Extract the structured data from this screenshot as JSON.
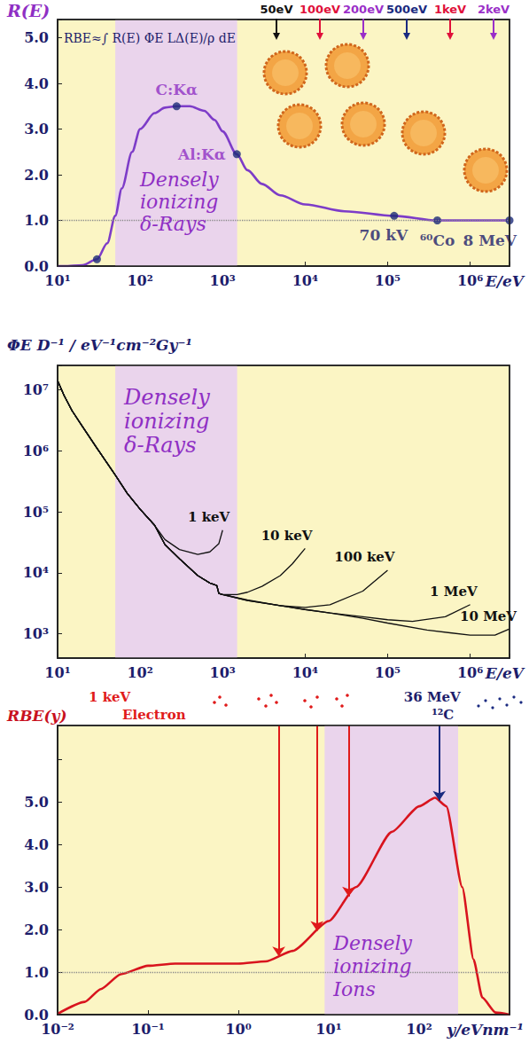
{
  "chart_data": [
    {
      "type": "line",
      "y_label": "R(E)",
      "x_label": "E/eV",
      "formula": "RBE≈∫ R(E) ΦE LΔ(E)/ρ dE",
      "log": "x",
      "grid": false,
      "xlim": [
        10,
        3000000
      ],
      "xticks": [
        {
          "value": 10,
          "label": "10¹"
        },
        {
          "value": 100,
          "label": "10²"
        },
        {
          "value": 1000,
          "label": "10³"
        },
        {
          "value": 10000,
          "label": "10⁴"
        },
        {
          "value": 100000,
          "label": "10⁵"
        },
        {
          "value": 1000000,
          "label": "10⁶"
        }
      ],
      "ylim": [
        0,
        5.4
      ],
      "yticks": [
        {
          "value": 0,
          "label": "0.0"
        },
        {
          "value": 1,
          "label": "1.0"
        },
        {
          "value": 2,
          "label": "2.0"
        },
        {
          "value": 3,
          "label": "3.0"
        },
        {
          "value": 4,
          "label": "4.0"
        },
        {
          "value": 5,
          "label": "5.0"
        }
      ],
      "band": [
        50,
        1500
      ],
      "band_label": "Densely ionizing δ-Rays",
      "reference_line": 1.0,
      "color": "#7d3cc8",
      "line_style": "solid",
      "x": [
        10,
        12,
        20,
        30,
        40,
        50,
        60,
        80,
        100,
        150,
        200,
        277,
        400,
        600,
        800,
        1000,
        1487,
        2000,
        3000,
        5000,
        10000,
        30000,
        120000,
        400000,
        1000000,
        3000000
      ],
      "values": [
        0,
        0,
        0.02,
        0.15,
        0.5,
        1.1,
        1.7,
        2.5,
        3.0,
        3.35,
        3.47,
        3.5,
        3.5,
        3.4,
        3.2,
        2.95,
        2.45,
        2.1,
        1.8,
        1.55,
        1.35,
        1.2,
        1.1,
        1.0,
        1.0,
        1.0
      ],
      "points": {
        "marker": "circle",
        "color": "#1c2a78",
        "x": [
          30,
          277,
          1487,
          120000,
          400000,
          3000000
        ],
        "values": [
          0.15,
          3.5,
          2.45,
          1.1,
          1.0,
          1.0
        ],
        "labels": [
          null,
          "C:Kα",
          "Al:Kα",
          "70 kV",
          "⁶⁰Co",
          "8 MeV"
        ]
      },
      "track_labels": [
        {
          "label": "50eV",
          "color": "#111111"
        },
        {
          "label": "100eV",
          "color": "#e0103a"
        },
        {
          "label": "200eV",
          "color": "#9a2fc8"
        },
        {
          "label": "500eV",
          "color": "#1a2a80"
        },
        {
          "label": "1keV",
          "color": "#e0103a"
        },
        {
          "label": "2keV",
          "color": "#9a2fc8"
        }
      ]
    },
    {
      "type": "line",
      "y_label": "ΦE D⁻¹ / eV⁻¹cm⁻²Gy⁻¹",
      "x_label": "E/eV",
      "log": true,
      "grid": false,
      "xlim": [
        10,
        3000000
      ],
      "xticks": [
        {
          "value": 10,
          "label": "10¹"
        },
        {
          "value": 100,
          "label": "10²"
        },
        {
          "value": 1000,
          "label": "10³"
        },
        {
          "value": 10000,
          "label": "10⁴"
        },
        {
          "value": 100000,
          "label": "10⁵"
        },
        {
          "value": 1000000,
          "label": "10⁶"
        }
      ],
      "ylim": [
        400,
        25000000
      ],
      "yticks": [
        {
          "value": 1000,
          "label": "10³"
        },
        {
          "value": 10000,
          "label": "10⁴"
        },
        {
          "value": 100000,
          "label": "10⁵"
        },
        {
          "value": 1000000,
          "label": "10⁶"
        },
        {
          "value": 10000000,
          "label": "10⁷"
        }
      ],
      "band": [
        50,
        1500
      ],
      "band_label": "Densely ionizing δ-Rays",
      "line_style": "solid",
      "series": [
        {
          "name": "1 keV",
          "color": "#111111",
          "x": [
            10,
            12,
            15,
            20,
            30,
            50,
            70,
            100,
            150,
            200,
            300,
            500,
            700,
            900,
            1000
          ],
          "values": [
            14000000,
            8000000,
            4500000,
            2500000,
            1100000,
            400000,
            200000,
            110000,
            60000,
            35000,
            24000,
            20000,
            22000,
            30000,
            50000
          ]
        },
        {
          "name": "10 keV",
          "color": "#111111",
          "x": [
            10,
            12,
            15,
            20,
            30,
            50,
            70,
            100,
            150,
            200,
            300,
            500,
            700,
            850,
            900,
            1000,
            1500,
            2000,
            3000,
            5000,
            7000,
            10000
          ],
          "values": [
            14000000,
            8000000,
            4500000,
            2500000,
            1100000,
            400000,
            200000,
            110000,
            60000,
            29000,
            17000,
            9000,
            6800,
            6200,
            4600,
            4400,
            4400,
            4800,
            6000,
            9000,
            14000,
            25000
          ]
        },
        {
          "name": "100 keV",
          "color": "#111111",
          "x": [
            10,
            12,
            15,
            20,
            30,
            50,
            70,
            100,
            150,
            200,
            300,
            500,
            700,
            850,
            900,
            1000,
            2000,
            5000,
            10000,
            20000,
            50000,
            100000
          ],
          "values": [
            14000000,
            8000000,
            4500000,
            2500000,
            1100000,
            400000,
            200000,
            110000,
            60000,
            29000,
            17000,
            9000,
            6800,
            6200,
            4600,
            4400,
            3600,
            2900,
            2700,
            3000,
            5000,
            11000
          ]
        },
        {
          "name": "1 MeV",
          "color": "#111111",
          "x": [
            10,
            12,
            15,
            20,
            30,
            50,
            70,
            100,
            150,
            200,
            300,
            500,
            700,
            850,
            900,
            1000,
            2000,
            5000,
            10000,
            20000,
            50000,
            100000,
            200000,
            500000,
            1000000
          ],
          "values": [
            14000000,
            8000000,
            4500000,
            2500000,
            1100000,
            400000,
            200000,
            110000,
            60000,
            29000,
            17000,
            9000,
            6800,
            6200,
            4600,
            4400,
            3500,
            2900,
            2500,
            2200,
            1900,
            1700,
            1600,
            1900,
            3000
          ]
        },
        {
          "name": "10 MeV",
          "color": "#111111",
          "x": [
            10,
            12,
            15,
            20,
            30,
            50,
            70,
            100,
            150,
            200,
            300,
            500,
            700,
            850,
            900,
            1000,
            2000,
            5000,
            10000,
            20000,
            50000,
            100000,
            300000,
            1000000,
            2000000,
            3000000
          ],
          "values": [
            14000000,
            8000000,
            4500000,
            2500000,
            1100000,
            400000,
            200000,
            110000,
            60000,
            29000,
            17000,
            9000,
            6800,
            6200,
            4600,
            4400,
            3500,
            2900,
            2500,
            2200,
            1800,
            1500,
            1150,
            950,
            950,
            1200
          ]
        }
      ]
    },
    {
      "type": "line",
      "y_label": "RBE(y)",
      "x_label": "y/eVnm⁻¹",
      "log": "x",
      "grid": false,
      "xlim": [
        0.01,
        1000
      ],
      "xticks": [
        {
          "value": 0.01,
          "label": "10⁻²"
        },
        {
          "value": 0.1,
          "label": "10⁻¹"
        },
        {
          "value": 1,
          "label": "10⁰"
        },
        {
          "value": 10,
          "label": "10¹"
        },
        {
          "value": 100,
          "label": "10²"
        }
      ],
      "ylim": [
        0,
        6.8
      ],
      "yticks": [
        {
          "value": 0,
          "label": "0.0"
        },
        {
          "value": 1,
          "label": "1.0"
        },
        {
          "value": 2,
          "label": "2.0"
        },
        {
          "value": 3,
          "label": "3.0"
        },
        {
          "value": 4,
          "label": "4.0"
        },
        {
          "value": 5,
          "label": "5.0"
        }
      ],
      "band": [
        9,
        270
      ],
      "band_label": "Densely ionizing Ions",
      "reference_line": 1.0,
      "color": "#d8141e",
      "line_style": "solid",
      "x": [
        0.01,
        0.02,
        0.03,
        0.05,
        0.1,
        0.2,
        0.5,
        1,
        2,
        4,
        10,
        20,
        50,
        100,
        150,
        200,
        300,
        400,
        500,
        700,
        1000
      ],
      "values": [
        0.02,
        0.3,
        0.6,
        0.95,
        1.15,
        1.2,
        1.2,
        1.2,
        1.25,
        1.5,
        2.2,
        3.0,
        4.3,
        4.9,
        5.1,
        4.9,
        3.0,
        1.3,
        0.4,
        0.05,
        0.0
      ],
      "arrows": [
        {
          "x": 2.8,
          "y": 1.37,
          "color": "#e01a1a"
        },
        {
          "x": 7.4,
          "y": 1.97,
          "color": "#e01a1a"
        },
        {
          "x": 16.6,
          "y": 2.78,
          "color": "#e01a1a"
        },
        {
          "x": 167,
          "y": 5.03,
          "color": "#1a2a80"
        }
      ],
      "electron_label": [
        "1 keV",
        "Electron"
      ],
      "ion_label": [
        "36 MeV",
        "¹²C"
      ]
    }
  ]
}
